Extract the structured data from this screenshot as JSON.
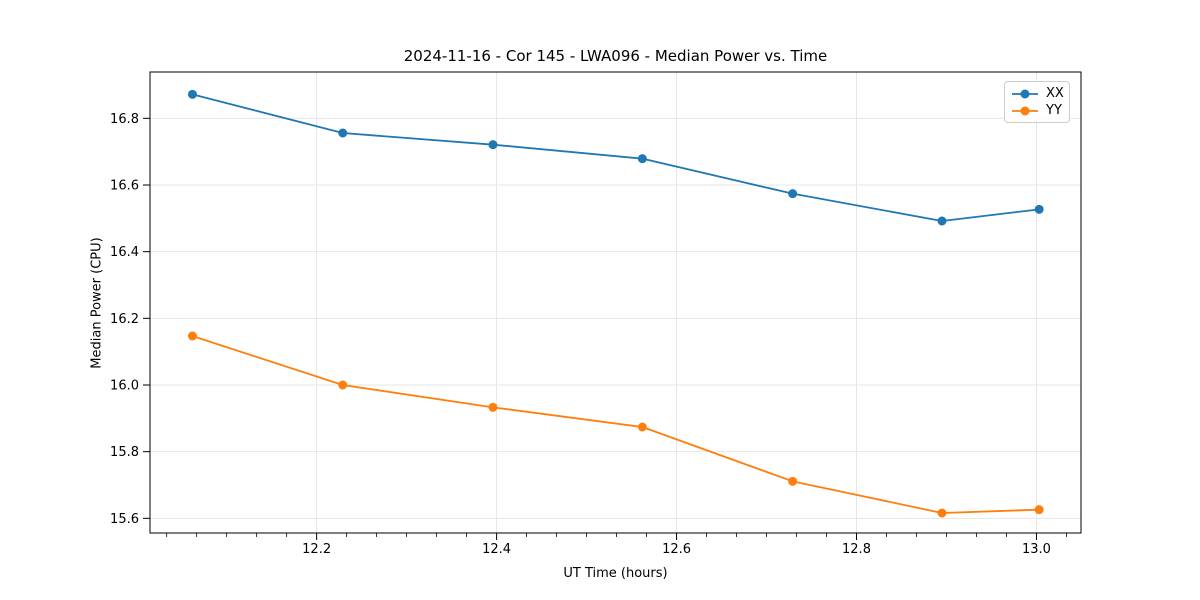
{
  "chart_data": {
    "type": "line",
    "title": "2024-11-16 - Cor 145 - LWA096 - Median Power vs. Time",
    "xlabel": "UT Time (hours)",
    "ylabel": "Median Power (CPU)",
    "x": [
      12.062,
      12.229,
      12.396,
      12.562,
      12.729,
      12.895,
      13.003
    ],
    "series": [
      {
        "name": "XX",
        "color": "#1f77b4",
        "values": [
          16.872,
          16.756,
          16.721,
          16.679,
          16.574,
          16.492,
          16.527
        ]
      },
      {
        "name": "YY",
        "color": "#ff7f0e",
        "values": [
          16.147,
          16.0,
          15.933,
          15.874,
          15.711,
          15.616,
          15.626
        ]
      }
    ],
    "xlim": [
      12.0148,
      13.0495
    ],
    "ylim": [
      15.556,
      16.939
    ],
    "x_ticks": [
      12.2,
      12.4,
      12.6,
      12.8,
      13.0
    ],
    "x_tick_labels": [
      "12.2",
      "12.4",
      "12.6",
      "12.8",
      "13.0"
    ],
    "y_ticks": [
      15.6,
      15.8,
      16.0,
      16.2,
      16.4,
      16.6,
      16.8
    ],
    "y_tick_labels": [
      "15.6",
      "15.8",
      "16.0",
      "16.2",
      "16.4",
      "16.6",
      "16.8"
    ],
    "x_minor_step": 0.0333333,
    "grid": true,
    "grid_color": "#e6e6e6",
    "spine_color": "#000000",
    "legend_position": "upper right",
    "marker": "o"
  }
}
